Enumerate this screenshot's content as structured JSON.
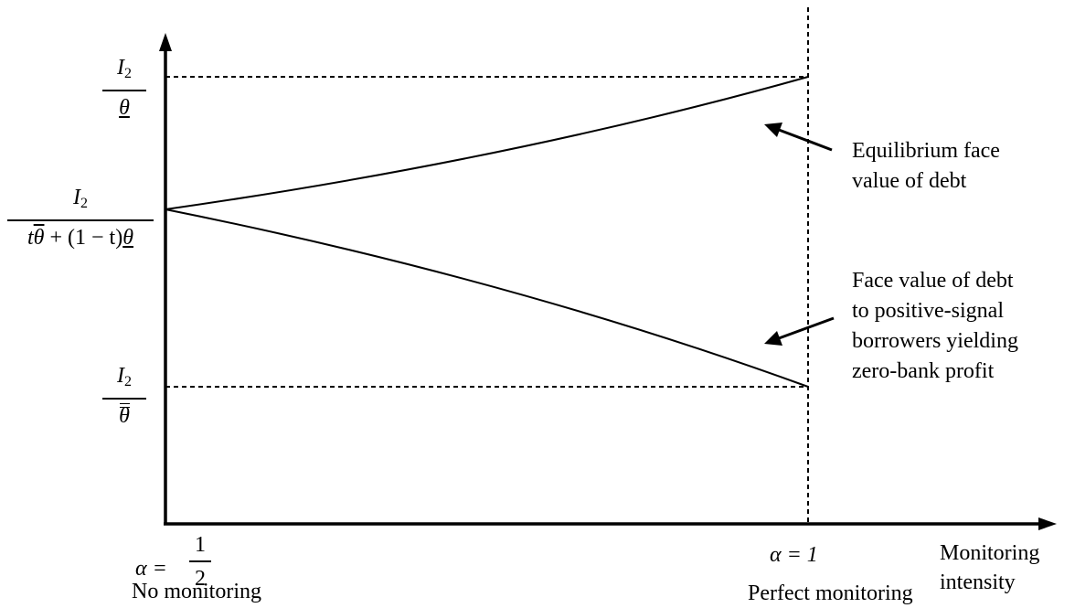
{
  "y_axis": {
    "top_label": {
      "num": "I",
      "num_sub": "2",
      "den": "θ"
    },
    "mid_label": {
      "num": "I",
      "num_sub": "2",
      "den_t": "t",
      "den_theta_bar": "θ",
      "den_rest": " + (1 − t)",
      "den_theta_under": "θ"
    },
    "bottom_label": {
      "num": "I",
      "num_sub": "2",
      "den": "θ"
    }
  },
  "x_axis": {
    "start_lhs": "α =",
    "start_num": "1",
    "start_den": "2",
    "end_label": "α = 1",
    "start_caption": "No monitoring",
    "end_caption": "Perfect monitoring",
    "axis_title_line1": "Monitoring",
    "axis_title_line2": "intensity"
  },
  "annotations": {
    "upper_line1": "Equilibrium face",
    "upper_line2": "value of debt",
    "lower_line1": "Face value of debt",
    "lower_line2": "to positive-signal",
    "lower_line3": "borrowers yielding",
    "lower_line4": "zero-bank profit"
  },
  "chart_data": {
    "type": "line",
    "x_range": [
      "α = 1/2",
      "α = 1"
    ],
    "series": [
      {
        "name": "Equilibrium face value of debt",
        "from": "I2 / (tθ̄ + (1−t)θ̲)",
        "to": "I2 / θ̲",
        "shape": "convex-increasing"
      },
      {
        "name": "Face value of debt to positive-signal borrowers yielding zero-bank profit",
        "from": "I2 / (tθ̄ + (1−t)θ̲)",
        "to": "I2 / θ̿",
        "shape": "concave-decreasing"
      }
    ]
  }
}
